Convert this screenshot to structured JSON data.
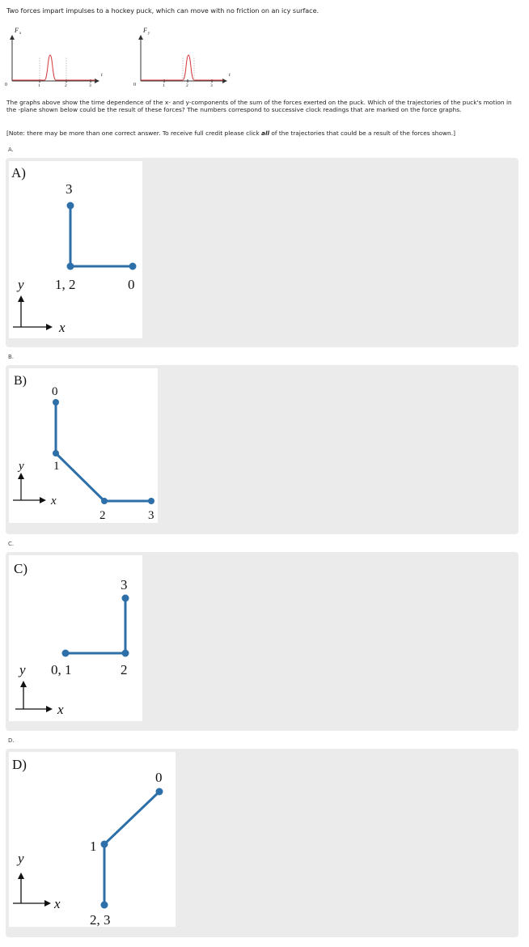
{
  "question": {
    "intro": "Two forces impart impulses to a hockey puck, which can move with no friction on an icy surface.",
    "body": "The graphs above show the time dependence of the x- and y-components of the sum of the forces exerted on the puck. Which of the trajectories of the puck's motion in the -plane shown below could be the result of these forces? The numbers correspond to successive clock readings that are marked on the force graphs.",
    "note_prefix": "[Note: there may be more than one correct answer.  To receive full credit please click ",
    "note_emph": "all",
    "note_suffix": " of the trajectories that could be a result of the forces shown.]"
  },
  "force_graphs": {
    "fx": {
      "ylabel": "F",
      "subscript": "x",
      "xlabel": "t",
      "origin": "0",
      "ticks": [
        "1",
        "2",
        "3"
      ]
    },
    "fy": {
      "ylabel": "F",
      "subscript": "y",
      "xlabel": "t",
      "origin": "0",
      "ticks": [
        "1",
        "2",
        "3"
      ]
    }
  },
  "options": [
    {
      "letter": "A.",
      "title": "A)",
      "axis_y": "y",
      "axis_x": "x",
      "labels": [
        "3",
        "1, 2",
        "0"
      ]
    },
    {
      "letter": "B.",
      "title": "B)",
      "axis_y": "y",
      "axis_x": "x",
      "labels": [
        "0",
        "1",
        "2",
        "3"
      ]
    },
    {
      "letter": "C.",
      "title": "C)",
      "axis_y": "y",
      "axis_x": "x",
      "labels": [
        "3",
        "0, 1",
        "2"
      ]
    },
    {
      "letter": "D.",
      "title": "D)",
      "axis_y": "y",
      "axis_x": "x",
      "labels": [
        "0",
        "1",
        "2, 3"
      ]
    }
  ],
  "colors": {
    "trajectory": "#2d6fa8",
    "impulse": "#d13a3a",
    "card": "#ebebeb"
  }
}
